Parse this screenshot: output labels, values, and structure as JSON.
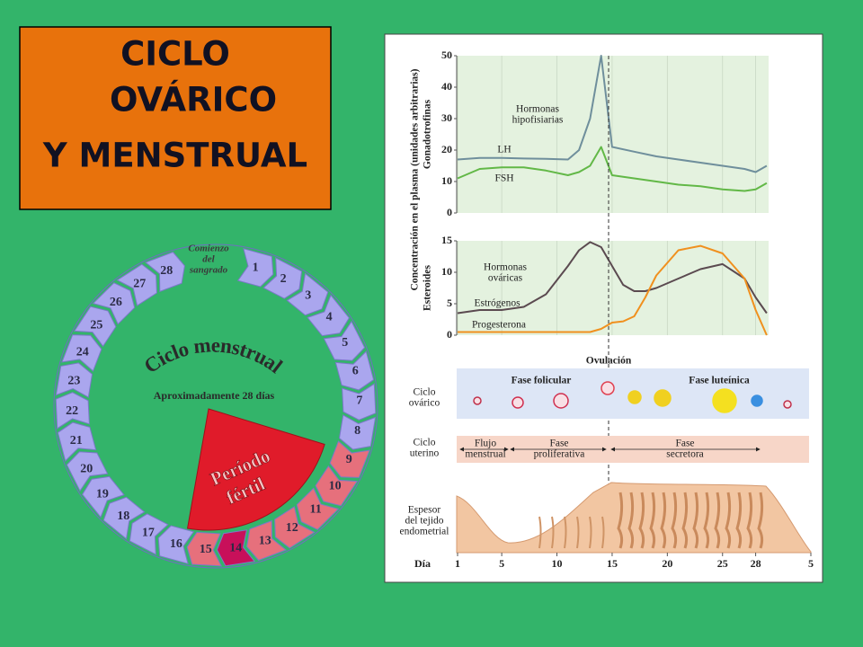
{
  "title": {
    "lines": [
      "CICLO",
      "OVÁRICO",
      "Y MENSTRUAL"
    ]
  },
  "wheel": {
    "title": "Ciclo menstrual",
    "subtitle": "Aproximadamente 28 días",
    "start_label": [
      "Comienzo",
      "del",
      "sangrado"
    ],
    "fertile_label": [
      "Período",
      "fértil"
    ],
    "days": [
      1,
      2,
      3,
      4,
      5,
      6,
      7,
      8,
      9,
      10,
      11,
      12,
      13,
      14,
      15,
      16,
      17,
      18,
      19,
      20,
      21,
      22,
      23,
      24,
      25,
      26,
      27,
      28
    ]
  },
  "panel": {
    "y_label": "Concentración en el plasma (unidades arbitrarias)",
    "ovulation": "Ovulación",
    "ovarian": {
      "label": [
        "Ciclo",
        "ovárico"
      ],
      "phases": [
        "Fase folicular",
        "Fase luteínica"
      ]
    },
    "uterine": {
      "label": [
        "Ciclo",
        "uterino"
      ],
      "phases": [
        [
          "Flujo",
          "menstrual"
        ],
        [
          "Fase",
          "proliferativa"
        ],
        [
          "Fase",
          "secretora"
        ]
      ]
    },
    "endometrium": [
      "Espesor",
      "del tejido",
      "endometrial"
    ]
  },
  "day_axis": {
    "label": "Día",
    "xlim": [
      1,
      33
    ],
    "ticks": [
      1,
      5,
      10,
      15,
      20,
      25,
      28,
      {
        "value": 33,
        "label": "5"
      }
    ]
  },
  "chart_data": [
    {
      "type": "line",
      "y_label": "Gonadotrofinas",
      "annotation": [
        "Hormonas",
        "hipofisiarias"
      ],
      "x": [
        1,
        3,
        5,
        7,
        9,
        11,
        12,
        13,
        14,
        15,
        17,
        19,
        21,
        23,
        25,
        27,
        28,
        29
      ],
      "series": [
        {
          "name": "LH",
          "color": "#6f8f9c",
          "values": [
            17,
            17.5,
            17.5,
            17.3,
            17.2,
            17,
            20,
            30,
            50,
            21,
            19.5,
            18,
            17,
            16,
            15,
            14,
            13,
            15
          ]
        },
        {
          "name": "FSH",
          "color": "#62b847",
          "values": [
            11,
            14,
            14.5,
            14.5,
            13.5,
            12,
            13,
            15,
            21,
            12,
            11,
            10,
            9,
            8.5,
            7.5,
            7,
            7.5,
            9.5
          ]
        }
      ],
      "ylim": [
        0,
        50
      ],
      "yticks": [
        0,
        10,
        20,
        30,
        40,
        50
      ],
      "grid": true
    },
    {
      "type": "line",
      "y_label": "Esteroides",
      "annotation": [
        "Hormonas",
        "ováricas"
      ],
      "x": [
        1,
        3,
        5,
        7,
        9,
        11,
        12,
        13,
        14,
        15,
        16,
        17,
        18,
        19,
        21,
        23,
        25,
        27,
        28,
        29
      ],
      "series": [
        {
          "name": "Estrógenos",
          "color": "#5b4a50",
          "values": [
            3.5,
            4,
            4,
            4.5,
            6.5,
            11,
            13.5,
            14.8,
            14,
            11,
            8,
            7,
            7,
            7.5,
            9,
            10.5,
            11.3,
            9,
            6,
            3.5
          ]
        },
        {
          "name": "Progesterona",
          "color": "#f0901e",
          "values": [
            0.5,
            0.5,
            0.5,
            0.5,
            0.5,
            0.5,
            0.5,
            0.5,
            1,
            2,
            2.2,
            3,
            6,
            9.5,
            13.5,
            14.2,
            13,
            9,
            4,
            0
          ]
        }
      ],
      "ylim": [
        0,
        15
      ],
      "yticks": [
        0,
        5,
        10,
        15
      ],
      "grid": true
    }
  ]
}
